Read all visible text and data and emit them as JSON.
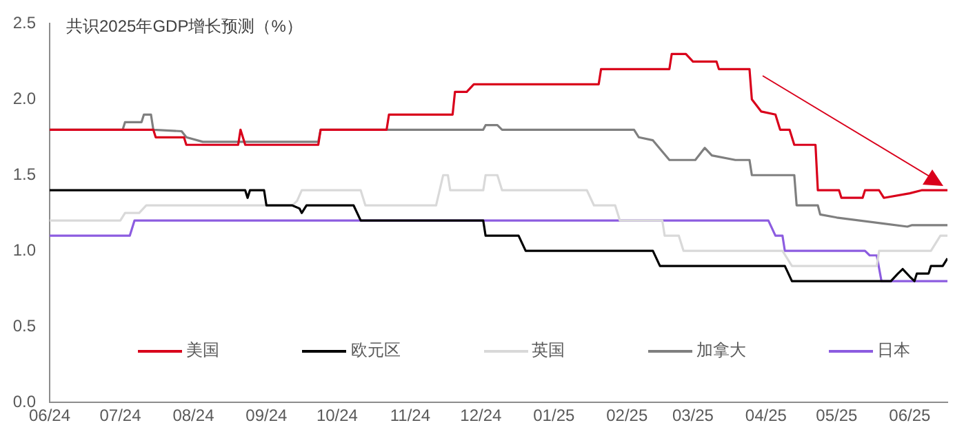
{
  "chart_data": {
    "type": "line",
    "title": "共识2025年GDP增长预测（%）",
    "xlim": [
      "2024-06-01",
      "2025-06-17"
    ],
    "xticks": [
      {
        "value": "2024-06",
        "label": "06/24"
      },
      {
        "value": "2024-07",
        "label": "07/24"
      },
      {
        "value": "2024-08",
        "label": "08/24"
      },
      {
        "value": "2024-09",
        "label": "09/24"
      },
      {
        "value": "2024-10",
        "label": "10/24"
      },
      {
        "value": "2024-11",
        "label": "11/24"
      },
      {
        "value": "2024-12",
        "label": "12/24"
      },
      {
        "value": "2025-01",
        "label": "01/25"
      },
      {
        "value": "2025-02",
        "label": "02/25"
      },
      {
        "value": "2025-03",
        "label": "03/25"
      },
      {
        "value": "2025-04",
        "label": "04/25"
      },
      {
        "value": "2025-05",
        "label": "05/25"
      },
      {
        "value": "2025-06",
        "label": "06/25"
      }
    ],
    "ylim": [
      0,
      2.5
    ],
    "yticks": [
      {
        "value": 0,
        "label": "0.0"
      },
      0.5,
      {
        "value": 1,
        "label": "1.0"
      },
      1.5,
      {
        "value": 2,
        "label": "2.0"
      },
      2.5
    ],
    "grid": false,
    "legend": "bottom",
    "marker": "none",
    "series": [
      {
        "name": "美国",
        "color": "#d9001b",
        "x": [
          "2024-06-01",
          "2024-07-15",
          "2024-07-16",
          "2024-07-28",
          "2024-07-29",
          "2024-08-20",
          "2024-08-21",
          "2024-08-23",
          "2024-09-23",
          "2024-09-24",
          "2024-10-22",
          "2024-10-23",
          "2024-11-19",
          "2024-11-20",
          "2024-11-25",
          "2024-11-28",
          "2025-01-20",
          "2025-01-21",
          "2025-02-19",
          "2025-02-20",
          "2025-02-26",
          "2025-03-01",
          "2025-03-11",
          "2025-03-12",
          "2025-03-25",
          "2025-03-26",
          "2025-03-30",
          "2025-04-05",
          "2025-04-07",
          "2025-04-11",
          "2025-04-13",
          "2025-04-22",
          "2025-04-23",
          "2025-05-02",
          "2025-05-03",
          "2025-05-12",
          "2025-05-13",
          "2025-05-19",
          "2025-05-21",
          "2025-06-01",
          "2025-06-06",
          "2025-06-17"
        ],
        "values": [
          1.8,
          1.8,
          1.75,
          1.75,
          1.7,
          1.7,
          1.8,
          1.7,
          1.7,
          1.8,
          1.8,
          1.9,
          1.9,
          2.05,
          2.05,
          2.1,
          2.1,
          2.2,
          2.2,
          2.3,
          2.3,
          2.25,
          2.25,
          2.2,
          2.2,
          2.0,
          1.92,
          1.9,
          1.8,
          1.8,
          1.7,
          1.7,
          1.4,
          1.4,
          1.35,
          1.35,
          1.4,
          1.4,
          1.35,
          1.38,
          1.4,
          1.4
        ]
      },
      {
        "name": "欧元区",
        "color": "#000000",
        "x": [
          "2024-06-01",
          "2024-08-23",
          "2024-08-24",
          "2024-08-25",
          "2024-08-31",
          "2024-09-01",
          "2024-09-12",
          "2024-09-15",
          "2024-09-16",
          "2024-09-18",
          "2024-10-08",
          "2024-10-11",
          "2024-12-02",
          "2024-12-03",
          "2024-12-17",
          "2024-12-20",
          "2025-02-12",
          "2025-02-15",
          "2025-04-09",
          "2025-04-12",
          "2025-05-24",
          "2025-05-27",
          "2025-05-29",
          "2025-06-01",
          "2025-06-03",
          "2025-06-04",
          "2025-06-09",
          "2025-06-10",
          "2025-06-15",
          "2025-06-17"
        ],
        "values": [
          1.4,
          1.4,
          1.35,
          1.4,
          1.4,
          1.3,
          1.3,
          1.28,
          1.25,
          1.3,
          1.3,
          1.2,
          1.2,
          1.1,
          1.1,
          1.0,
          1.0,
          0.9,
          0.9,
          0.8,
          0.8,
          0.85,
          0.88,
          0.83,
          0.8,
          0.85,
          0.85,
          0.9,
          0.9,
          0.95
        ]
      },
      {
        "name": "英国",
        "color": "#d9d9d9",
        "x": [
          "2024-06-01",
          "2024-07-01",
          "2024-07-03",
          "2024-07-09",
          "2024-07-12",
          "2024-09-03",
          "2024-09-12",
          "2024-09-14",
          "2024-09-16",
          "2024-10-11",
          "2024-10-13",
          "2024-11-12",
          "2024-11-15",
          "2024-11-17",
          "2024-11-18",
          "2024-12-02",
          "2024-12-03",
          "2024-12-08",
          "2024-12-10",
          "2025-01-15",
          "2025-01-18",
          "2025-01-27",
          "2025-01-29",
          "2025-02-16",
          "2025-02-17",
          "2025-02-23",
          "2025-02-25",
          "2025-04-08",
          "2025-04-12",
          "2025-05-18",
          "2025-05-19",
          "2025-06-10",
          "2025-06-14",
          "2025-06-17"
        ],
        "values": [
          1.2,
          1.2,
          1.25,
          1.25,
          1.3,
          1.3,
          1.3,
          1.33,
          1.4,
          1.4,
          1.3,
          1.3,
          1.5,
          1.5,
          1.4,
          1.4,
          1.5,
          1.5,
          1.4,
          1.4,
          1.3,
          1.3,
          1.2,
          1.2,
          1.1,
          1.1,
          1.0,
          1.0,
          0.9,
          0.9,
          1.0,
          1.0,
          1.1,
          1.1
        ]
      },
      {
        "name": "加拿大",
        "color": "#7f7f7f",
        "x": [
          "2024-06-01",
          "2024-07-02",
          "2024-07-03",
          "2024-07-10",
          "2024-07-11",
          "2024-07-14",
          "2024-07-15",
          "2024-07-27",
          "2024-07-29",
          "2024-08-05",
          "2024-09-23",
          "2024-09-24",
          "2024-12-02",
          "2024-12-03",
          "2024-12-08",
          "2024-12-10",
          "2025-02-04",
          "2025-02-06",
          "2025-02-12",
          "2025-02-19",
          "2025-03-02",
          "2025-03-06",
          "2025-03-09",
          "2025-03-19",
          "2025-03-25",
          "2025-03-26",
          "2025-04-13",
          "2025-04-14",
          "2025-04-23",
          "2025-04-24",
          "2025-05-01",
          "2025-05-21",
          "2025-05-31",
          "2025-06-02",
          "2025-06-17"
        ],
        "values": [
          1.8,
          1.8,
          1.85,
          1.85,
          1.9,
          1.9,
          1.8,
          1.79,
          1.75,
          1.72,
          1.72,
          1.8,
          1.8,
          1.83,
          1.83,
          1.8,
          1.8,
          1.75,
          1.73,
          1.6,
          1.6,
          1.68,
          1.63,
          1.6,
          1.6,
          1.5,
          1.5,
          1.3,
          1.3,
          1.24,
          1.22,
          1.18,
          1.16,
          1.17,
          1.17
        ]
      },
      {
        "name": "日本",
        "color": "#8c5ce0",
        "x": [
          "2024-06-01",
          "2024-07-05",
          "2024-07-07",
          "2025-04-02",
          "2025-04-05",
          "2025-04-08",
          "2025-04-09",
          "2025-05-13",
          "2025-05-15",
          "2025-05-18",
          "2025-05-20",
          "2025-06-17"
        ],
        "values": [
          1.1,
          1.1,
          1.2,
          1.2,
          1.1,
          1.1,
          1.0,
          1.0,
          0.97,
          0.97,
          0.8,
          0.8
        ]
      }
    ]
  }
}
